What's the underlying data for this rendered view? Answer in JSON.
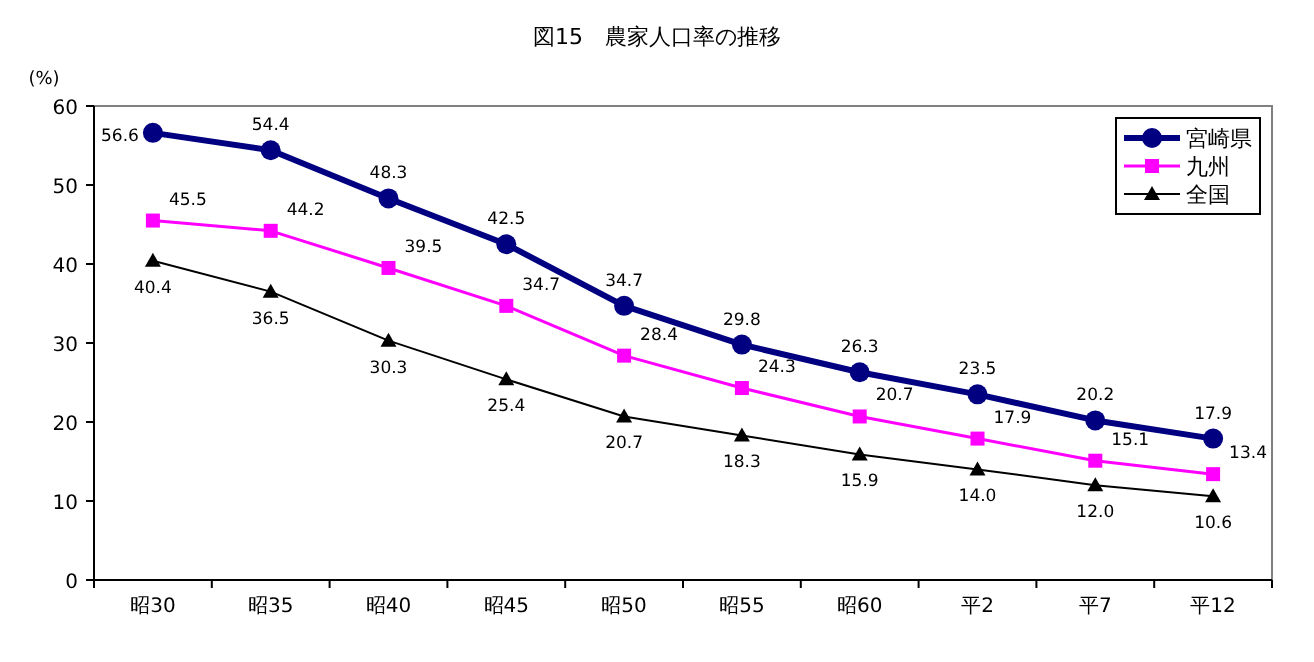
{
  "chart_data": {
    "type": "line",
    "title": "図15　農家人口率の推移",
    "ylabel": "(%)",
    "categories": [
      "昭30",
      "昭35",
      "昭40",
      "昭45",
      "昭50",
      "昭55",
      "昭60",
      "平2",
      "平7",
      "平12"
    ],
    "series": [
      {
        "name": "宮崎県",
        "color": "#000080",
        "marker": "circle",
        "values": [
          56.6,
          54.4,
          48.3,
          42.5,
          34.7,
          29.8,
          26.3,
          23.5,
          20.2,
          17.9
        ],
        "value_labels": [
          "56.6",
          "54.4",
          "48.3",
          "42.5",
          "34.7",
          "29.8",
          "26.3",
          "23.5",
          "20.2",
          "17.9"
        ]
      },
      {
        "name": "九州",
        "color": "#ff00ff",
        "marker": "square",
        "values": [
          45.5,
          44.2,
          39.5,
          34.7,
          28.4,
          24.3,
          20.7,
          17.9,
          15.1,
          13.4
        ],
        "value_labels": [
          "45.5",
          "44.2",
          "39.5",
          "34.7",
          "28.4",
          "24.3",
          "20.7",
          "17.9",
          "15.1",
          "13.4"
        ]
      },
      {
        "name": "全国",
        "color": "#000000",
        "marker": "triangle",
        "values": [
          40.4,
          36.5,
          30.3,
          25.4,
          20.7,
          18.3,
          15.9,
          14.0,
          12.0,
          10.6
        ],
        "value_labels": [
          "40.4",
          "36.5",
          "30.3",
          "25.4",
          "20.7",
          "18.3",
          "15.9",
          "14.0",
          "12.0",
          "10.6"
        ]
      }
    ],
    "ylim": [
      0,
      60
    ],
    "yticks": [
      0,
      10,
      20,
      30,
      40,
      50,
      60
    ],
    "grid": false,
    "legend": "top right"
  }
}
